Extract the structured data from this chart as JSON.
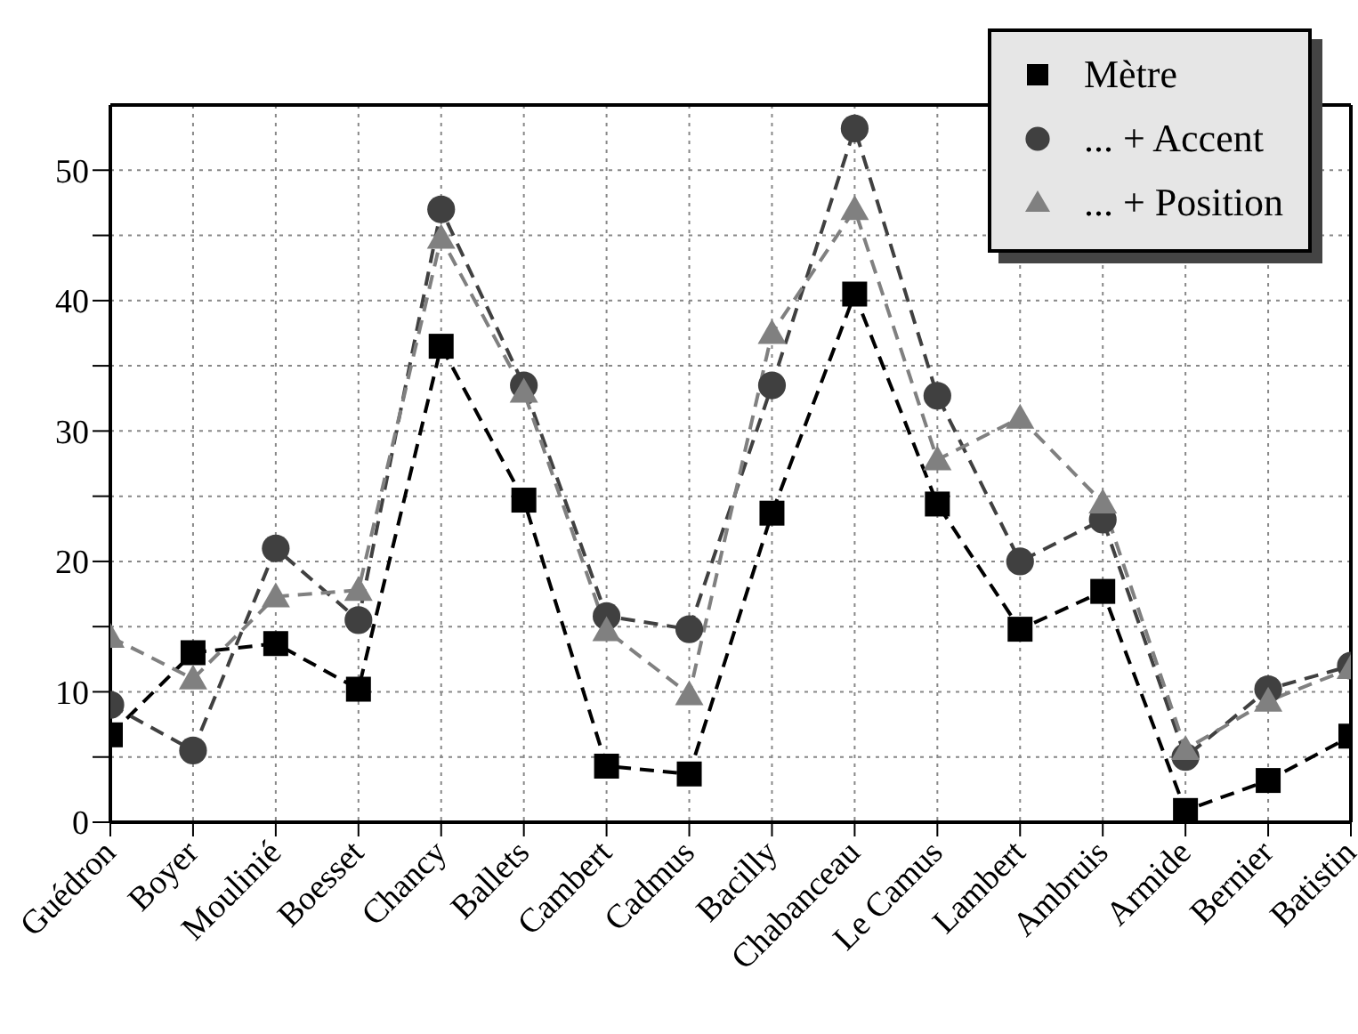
{
  "chart_data": {
    "type": "line",
    "categories": [
      "Guédron",
      "Boyer",
      "Moulinié",
      "Boesset",
      "Chancy",
      "Ballets",
      "Cambert",
      "Cadmus",
      "Bacilly",
      "Chabanceau",
      "Le Camus",
      "Lambert",
      "Ambruis",
      "Armide",
      "Bernier",
      "Batistin"
    ],
    "series": [
      {
        "name": "Mètre",
        "color": "#000000",
        "marker": "square",
        "values": [
          6.7,
          13,
          13.7,
          10.2,
          36.5,
          24.7,
          4.3,
          3.7,
          23.7,
          40.5,
          24.4,
          14.8,
          17.7,
          0.9,
          3.2,
          6.6
        ]
      },
      {
        "name": "... + Accent",
        "color": "#404040",
        "marker": "circle",
        "values": [
          9,
          5.5,
          21,
          15.5,
          47,
          33.5,
          15.8,
          14.8,
          33.5,
          53.2,
          32.7,
          20,
          23.2,
          5,
          10.2,
          12
        ]
      },
      {
        "name": "... + Position",
        "color": "#808080",
        "marker": "triangle",
        "values": [
          14.2,
          11,
          17.3,
          17.8,
          44.8,
          33,
          14.7,
          9.8,
          37.5,
          47,
          27.8,
          31,
          24.5,
          5.6,
          9.3,
          11.8
        ]
      }
    ],
    "ylim": [
      0,
      55
    ],
    "yticks": [
      0,
      {
        "value": 5,
        "label": null
      },
      10,
      {
        "value": 15,
        "label": null
      },
      20,
      {
        "value": 25,
        "label": null
      },
      30,
      {
        "value": 35,
        "label": null
      },
      40,
      {
        "value": 45,
        "label": null
      },
      50
    ],
    "grid": true,
    "legend": "top right",
    "line_style": "dashed"
  }
}
